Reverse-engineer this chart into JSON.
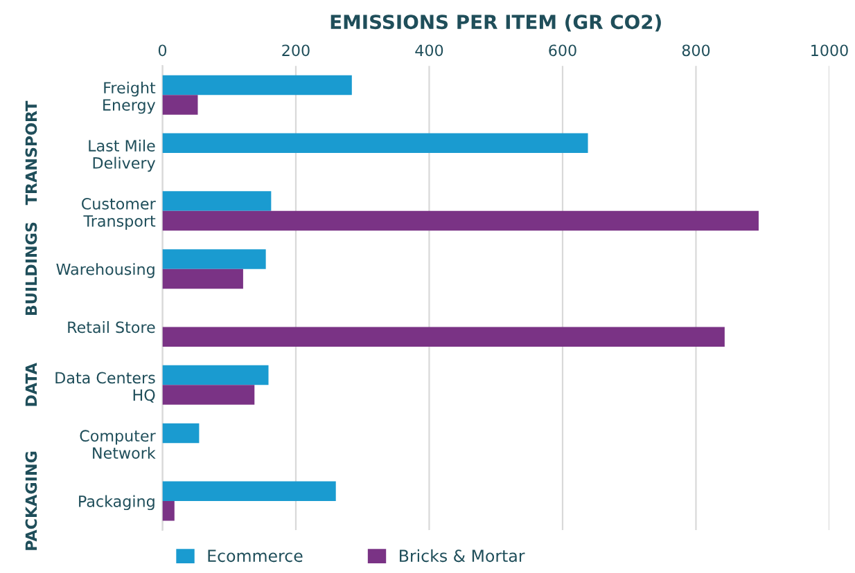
{
  "chart_data": {
    "type": "bar",
    "orientation": "horizontal",
    "xlabel": "EMISSIONS PER ITEM (GR CO2)",
    "categories": [
      "Freight\nEnergy",
      "Last Mile\nDelivery",
      "Customer\nTransport",
      "Warehousing",
      "Retail Store",
      "Data Centers\nHQ",
      "Computer\nNetwork",
      "Packaging"
    ],
    "series": [
      {
        "name": "Ecommerce",
        "color": "#1a9bd0",
        "values": [
          284,
          638,
          163,
          155,
          null,
          159,
          55,
          260
        ]
      },
      {
        "name": "Bricks & Mortar",
        "color": "#7a3385",
        "values": [
          53,
          null,
          894,
          121,
          843,
          138,
          null,
          18
        ]
      }
    ],
    "xlim": [
      0,
      1000
    ],
    "xticks": [
      0,
      200,
      400,
      600,
      800,
      1000
    ],
    "grid": "x",
    "legend": "bottom",
    "annotations": [
      "TRANSPORT",
      "BUILDINGS",
      "DATA",
      "PACKAGING"
    ]
  }
}
